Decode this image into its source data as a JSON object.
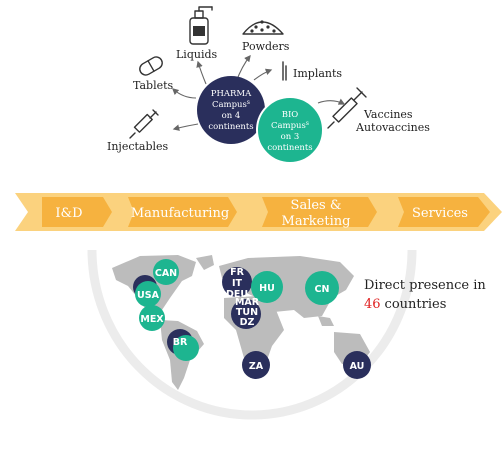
{
  "colors": {
    "navy": "#2a2f5c",
    "teal": "#1db590",
    "orange": "#f6b23f",
    "orange_light": "#fbd27e",
    "map_gray": "#bcbcbc",
    "highlight_red": "#e02020"
  },
  "campuses": {
    "pharma": {
      "line1": "PHARMA",
      "line2": "Campus",
      "sup": "s",
      "line3": "on 4",
      "line4": "continents"
    },
    "bio": {
      "line1": "BIO",
      "line2": "Campus",
      "sup": "s",
      "line3": "on 3",
      "line4": "continents"
    }
  },
  "dosage_forms": {
    "liquids": "Liquids",
    "powders": "Powders",
    "tablets": "Tablets",
    "implants": "Implants",
    "injectables": "Injectables",
    "vaccines": "Vaccines",
    "autovaccines": "Autovaccines"
  },
  "icons": [
    "liquid-bottle-icon",
    "powder-pile-icon",
    "tablet-pill-icon",
    "implant-icon",
    "syringe-icon",
    "vaccine-syringe-icon"
  ],
  "value_chain": [
    "I&D",
    "Manufacturing",
    "Sales &",
    "Marketing",
    "Services"
  ],
  "map": {
    "countries": {
      "can": "CAN",
      "usa": "USA",
      "mex": "MEX",
      "br": "BR",
      "fr": "FR",
      "it": "IT",
      "deu": "DEU",
      "mar": "MAR",
      "tun": "TUN",
      "dz": "DZ",
      "hu": "HU",
      "cn": "CN",
      "za": "ZA",
      "au": "AU"
    },
    "presence_line1": "Direct presence in",
    "presence_count": "46",
    "presence_suffix": "countries"
  }
}
